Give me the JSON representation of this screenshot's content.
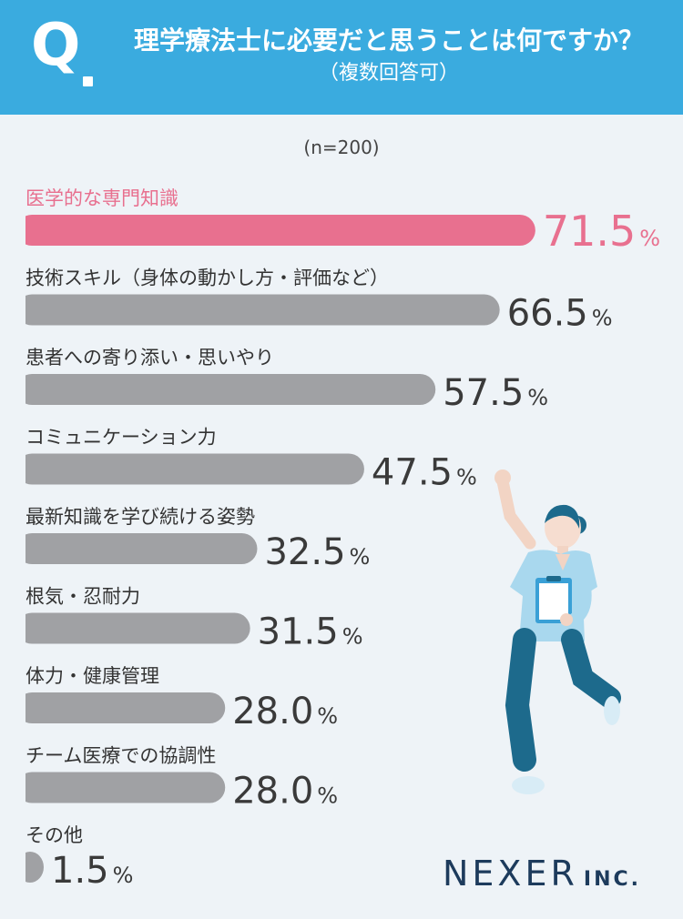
{
  "header": {
    "q_mark": "Q",
    "title": "理学療法士に必要だと思うことは何ですか？",
    "subtitle": "（複数回答可）",
    "background_color": "#3aabdf"
  },
  "sample_size": "(n=200)",
  "chart_data": {
    "type": "bar",
    "orientation": "horizontal",
    "unit": "%",
    "categories": [
      "医学的な専門知識",
      "技術スキル（身体の動かし方・評価など）",
      "患者への寄り添い・思いやり",
      "コミュニケーション力",
      "最新知識を学び続ける姿勢",
      "根気・忍耐力",
      "体力・健康管理",
      "チーム医療での協調性",
      "その他"
    ],
    "values": [
      71.5,
      66.5,
      57.5,
      47.5,
      32.5,
      31.5,
      28.0,
      28.0,
      1.5
    ],
    "value_labels": [
      "71.5",
      "66.5",
      "57.5",
      "47.5",
      "32.5",
      "31.5",
      "28.0",
      "28.0",
      "1.5"
    ],
    "xlim": [
      0,
      100
    ],
    "highlight_index": 0,
    "highlight_color": "#e8708f",
    "bar_color": "#a0a1a4",
    "label_color": "#333333",
    "value_color": "#3a3a3a"
  },
  "brand": {
    "name": "NEXER",
    "suffix": "INC.",
    "color": "#1d3b5c"
  },
  "illustration": {
    "icon": "nurse-cheering-illustration"
  }
}
